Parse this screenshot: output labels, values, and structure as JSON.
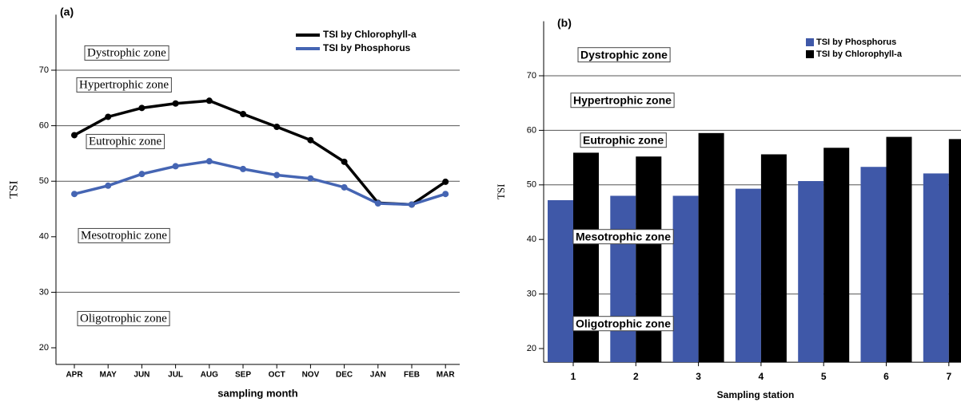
{
  "chart_data": [
    {
      "type": "line",
      "title": "(a)",
      "x_label": "sampling month",
      "y_label": "TSI",
      "categories": [
        "APR",
        "MAY",
        "JUN",
        "JUL",
        "AUG",
        "SEP",
        "OCT",
        "NOV",
        "DEC",
        "JAN",
        "FEB",
        "MAR"
      ],
      "series": [
        {
          "name": "TSI by Chlorophyll-a",
          "color": "#000000",
          "values": [
            58.3,
            61.6,
            63.2,
            64.0,
            64.5,
            62.1,
            59.8,
            57.4,
            53.5,
            46.1,
            45.8,
            49.9
          ]
        },
        {
          "name": "TSI by Phosphorus",
          "color": "#4565b3",
          "values": [
            47.7,
            49.2,
            51.3,
            52.7,
            53.6,
            52.2,
            51.1,
            50.5,
            48.9,
            46.0,
            45.8,
            47.7
          ]
        }
      ],
      "ylim": [
        17,
        80
      ],
      "yticks": [
        20,
        30,
        40,
        50,
        60,
        70
      ],
      "reference_lines": [
        30,
        50,
        60,
        70
      ],
      "annotations": [
        "Dystrophic zone",
        "Hypertrophic zone",
        "Eutrophic zone",
        "Mesotrophic zone",
        "Oligotrophic zone"
      ],
      "legend": "upper right"
    },
    {
      "type": "bar",
      "title": "(b)",
      "x_label": "Sampling station",
      "y_label": "TSI",
      "categories": [
        "1",
        "2",
        "3",
        "4",
        "5",
        "6",
        "7"
      ],
      "series": [
        {
          "name": "TSI by Phosphorus",
          "color": "#3f58a8",
          "values": [
            47.2,
            48.0,
            48.0,
            49.3,
            50.7,
            53.3,
            52.1
          ]
        },
        {
          "name": "TSI by Chlorophyll-a",
          "color": "#000000",
          "values": [
            55.9,
            55.2,
            59.5,
            55.6,
            56.8,
            58.8,
            58.4
          ]
        }
      ],
      "ylim": [
        17.5,
        80
      ],
      "yticks": [
        20,
        30,
        40,
        50,
        60,
        70
      ],
      "reference_lines": [
        30,
        50,
        60,
        70
      ],
      "annotations": [
        "Dystrophic zone",
        "Hypertrophic zone",
        "Eutrophic zone",
        "Mesotrophic zone",
        "Oligotrophic zone"
      ],
      "legend": "upper right"
    }
  ]
}
